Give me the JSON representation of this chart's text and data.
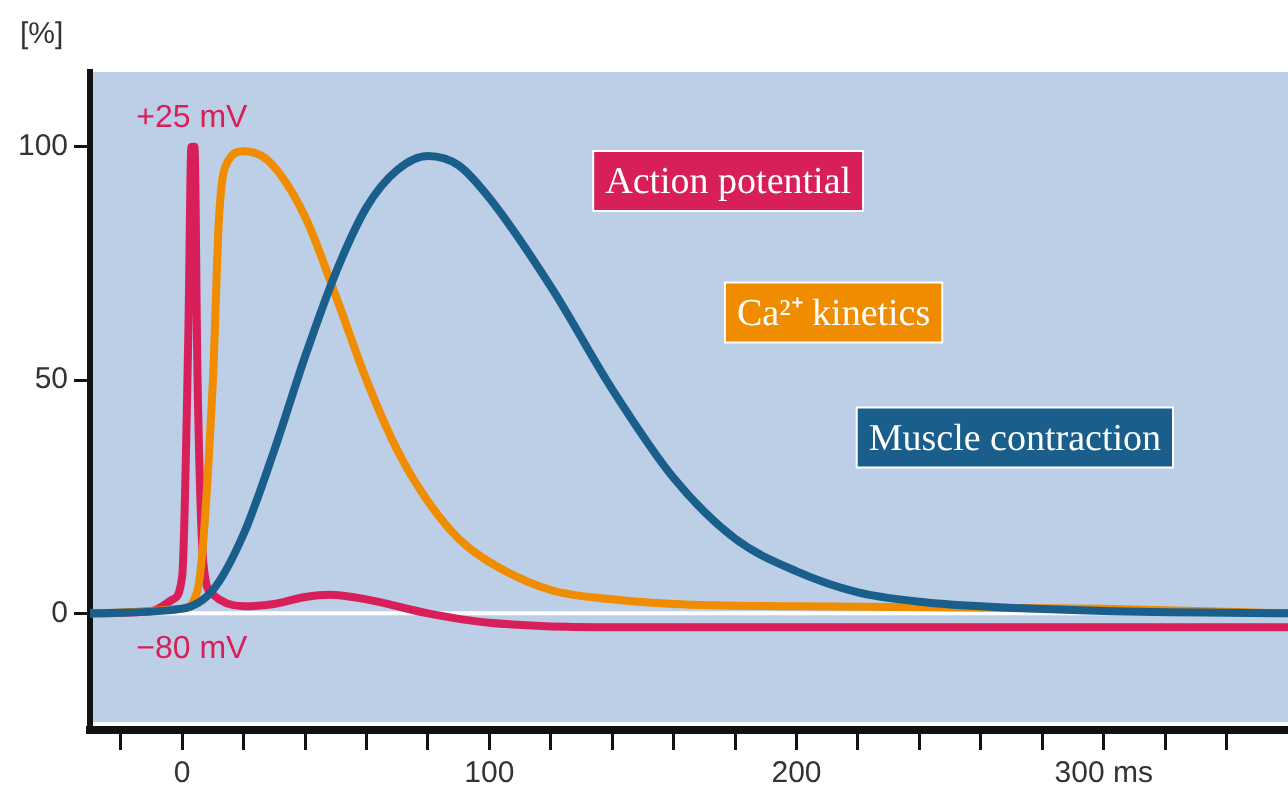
{
  "chart_data": {
    "type": "line",
    "ylabel": "[%]",
    "xlim": [
      -30,
      360
    ],
    "ylim": [
      -25,
      116
    ],
    "xticks": [
      {
        "value": -20,
        "label": null
      },
      0,
      {
        "value": 20,
        "label": null
      },
      {
        "value": 40,
        "label": null
      },
      {
        "value": 60,
        "label": null
      },
      {
        "value": 80,
        "label": null
      },
      100,
      {
        "value": 120,
        "label": null
      },
      {
        "value": 140,
        "label": null
      },
      {
        "value": 160,
        "label": null
      },
      {
        "value": 180,
        "label": null
      },
      200,
      {
        "value": 220,
        "label": null
      },
      {
        "value": 240,
        "label": null
      },
      {
        "value": 260,
        "label": null
      },
      {
        "value": 280,
        "label": null
      },
      {
        "value": 300,
        "label": "300 ms"
      },
      {
        "value": 320,
        "label": null
      },
      {
        "value": 340,
        "label": null
      }
    ],
    "yticks": [
      0,
      50,
      100
    ],
    "grid": false,
    "ref_lines": [
      {
        "axis": "y",
        "value": 0,
        "color": "#ffffff"
      }
    ],
    "legend": false,
    "marker": "none",
    "line_style": "solid",
    "annotations": [
      {
        "text": "+25 mV",
        "x": 3,
        "y": 100
      },
      {
        "text": "−80 mV",
        "x": 3,
        "y": 0
      }
    ],
    "series": [
      {
        "name": "Muscle contraction",
        "color": "#1a5f8c",
        "x": [
          -30,
          0,
          10,
          20,
          30,
          40,
          50,
          60,
          70,
          80,
          90,
          100,
          120,
          140,
          160,
          180,
          200,
          220,
          240,
          260,
          300,
          360
        ],
        "values": [
          0,
          1,
          5,
          17,
          35,
          55,
          73,
          87,
          95,
          98,
          96,
          89,
          70,
          48,
          29,
          16,
          9,
          4.5,
          2.5,
          1.5,
          0.5,
          0
        ]
      },
      {
        "name": "Ca²⁺ kinetics",
        "color": "#ef8c00",
        "x": [
          -30,
          0,
          5,
          10,
          12,
          15,
          20,
          28,
          40,
          50,
          60,
          70,
          80,
          90,
          100,
          120,
          140,
          160,
          200,
          300,
          360
        ],
        "values": [
          0,
          1,
          5,
          50,
          85,
          97,
          99,
          97,
          85,
          68,
          50,
          35,
          24,
          16,
          11,
          5,
          3,
          2,
          1.5,
          1,
          0
        ]
      },
      {
        "name": "Action potential",
        "color": "#d81f5a",
        "x": [
          -30,
          -10,
          -3,
          0,
          2,
          3,
          4,
          5,
          7,
          10,
          20,
          30,
          40,
          48,
          60,
          80,
          100,
          150,
          200,
          300,
          360
        ],
        "values": [
          0,
          0.5,
          3,
          8,
          60,
          100,
          100,
          50,
          10,
          4,
          1.5,
          2,
          3.5,
          4,
          3,
          0,
          -2,
          -3,
          -3,
          -3,
          -3
        ]
      }
    ]
  }
}
